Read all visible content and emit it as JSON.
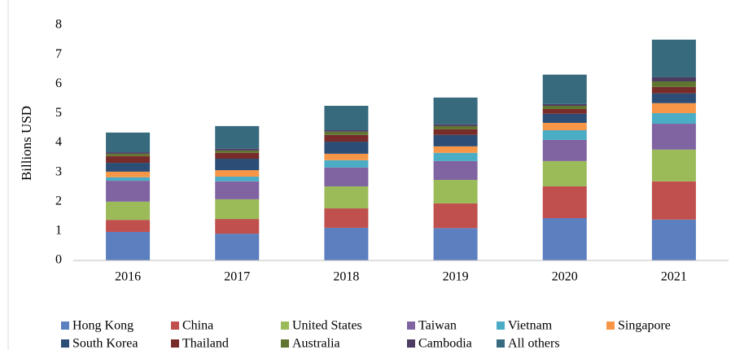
{
  "chart_data": {
    "type": "stacked_bar",
    "y_label": "Billions USD",
    "categories": [
      "2016",
      "2017",
      "2018",
      "2019",
      "2020",
      "2021"
    ],
    "ylim": [
      0,
      8
    ],
    "yticks": [
      0,
      1,
      2,
      3,
      4,
      5,
      6,
      7,
      8
    ],
    "grid": false,
    "legend": "bottom",
    "series": [
      {
        "name": "Hong Kong",
        "color": "#5b7fbf",
        "values": [
          0.97,
          0.91,
          1.11,
          1.1,
          1.44,
          1.39
        ]
      },
      {
        "name": "China",
        "color": "#c0504d",
        "values": [
          0.41,
          0.5,
          0.66,
          0.84,
          1.08,
          1.3
        ]
      },
      {
        "name": "United States",
        "color": "#9bbb59",
        "values": [
          0.62,
          0.67,
          0.75,
          0.8,
          0.86,
          1.08
        ]
      },
      {
        "name": "Taiwan",
        "color": "#8064a2",
        "values": [
          0.71,
          0.61,
          0.64,
          0.64,
          0.72,
          0.88
        ]
      },
      {
        "name": "Vietnam",
        "color": "#4bacc6",
        "values": [
          0.12,
          0.16,
          0.25,
          0.28,
          0.33,
          0.36
        ]
      },
      {
        "name": "Singapore",
        "color": "#f79646",
        "values": [
          0.19,
          0.22,
          0.22,
          0.22,
          0.25,
          0.34
        ]
      },
      {
        "name": "South Korea",
        "color": "#2c4d75",
        "values": [
          0.3,
          0.39,
          0.41,
          0.39,
          0.31,
          0.33
        ]
      },
      {
        "name": "Thailand",
        "color": "#772c2a",
        "values": [
          0.23,
          0.2,
          0.23,
          0.19,
          0.16,
          0.22
        ]
      },
      {
        "name": "Australia",
        "color": "#5f7530",
        "values": [
          0.08,
          0.08,
          0.11,
          0.11,
          0.11,
          0.19
        ]
      },
      {
        "name": "Cambodia",
        "color": "#4d3b62",
        "values": [
          0.05,
          0.06,
          0.05,
          0.06,
          0.06,
          0.14
        ]
      },
      {
        "name": "All others",
        "color": "#376a7d",
        "values": [
          0.67,
          0.77,
          0.83,
          0.91,
          1.0,
          1.28
        ]
      }
    ]
  }
}
